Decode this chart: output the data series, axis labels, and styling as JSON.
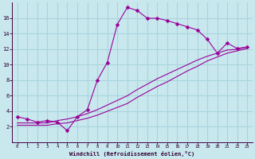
{
  "xlabel": "Windchill (Refroidissement éolien,°C)",
  "bg_color": "#c8e8ee",
  "grid_color": "#aad4dc",
  "line_color": "#990099",
  "x_hours": [
    0,
    1,
    2,
    3,
    4,
    5,
    6,
    7,
    8,
    9,
    10,
    11,
    12,
    13,
    14,
    15,
    16,
    17,
    18,
    19,
    20,
    21,
    22,
    23
  ],
  "line_main": [
    3.3,
    3.0,
    2.6,
    2.8,
    2.6,
    1.5,
    3.3,
    4.2,
    8.0,
    10.3,
    15.2,
    17.4,
    17.0,
    16.0,
    16.0,
    15.7,
    15.3,
    14.9,
    14.5,
    13.3,
    11.5,
    12.8,
    12.1,
    12.3
  ],
  "line_low1": [
    2.2,
    2.2,
    2.2,
    2.2,
    2.4,
    2.5,
    2.8,
    3.1,
    3.5,
    4.0,
    4.5,
    5.0,
    5.8,
    6.5,
    7.2,
    7.8,
    8.5,
    9.2,
    9.8,
    10.5,
    11.0,
    11.5,
    11.8,
    12.1
  ],
  "line_low2": [
    2.5,
    2.5,
    2.5,
    2.5,
    2.8,
    3.0,
    3.3,
    3.7,
    4.2,
    4.8,
    5.4,
    6.0,
    6.8,
    7.5,
    8.2,
    8.8,
    9.4,
    10.0,
    10.6,
    11.1,
    11.5,
    11.9,
    12.0,
    12.3
  ],
  "ylim": [
    0,
    18
  ],
  "xlim_min": -0.5,
  "xlim_max": 23.5,
  "yticks": [
    2,
    4,
    6,
    8,
    10,
    12,
    14,
    16
  ],
  "xticks": [
    0,
    1,
    2,
    3,
    4,
    5,
    6,
    7,
    8,
    9,
    10,
    11,
    12,
    13,
    14,
    15,
    16,
    17,
    18,
    19,
    20,
    21,
    22,
    23
  ]
}
